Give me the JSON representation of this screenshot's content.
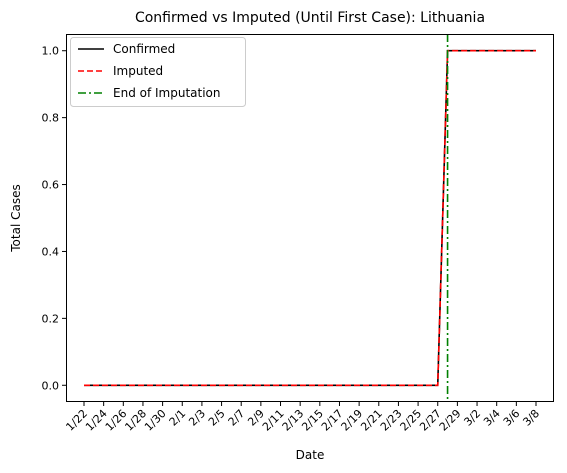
{
  "chart_data": {
    "type": "line",
    "title": "Confirmed vs Imputed (Until First Case): Lithuania",
    "xlabel": "Date",
    "ylabel": "Total Cases",
    "x": [
      "1/22",
      "1/23",
      "1/24",
      "1/25",
      "1/26",
      "1/27",
      "1/28",
      "1/29",
      "1/30",
      "1/31",
      "2/1",
      "2/2",
      "2/3",
      "2/4",
      "2/5",
      "2/6",
      "2/7",
      "2/8",
      "2/9",
      "2/10",
      "2/11",
      "2/12",
      "2/13",
      "2/14",
      "2/15",
      "2/16",
      "2/17",
      "2/18",
      "2/19",
      "2/20",
      "2/21",
      "2/22",
      "2/23",
      "2/24",
      "2/25",
      "2/26",
      "2/27",
      "2/28",
      "2/29",
      "3/1",
      "3/2",
      "3/3",
      "3/4",
      "3/5",
      "3/6",
      "3/7",
      "3/8"
    ],
    "xticklabels": [
      "1/22",
      "1/24",
      "1/26",
      "1/28",
      "1/30",
      "2/1",
      "2/3",
      "2/5",
      "2/7",
      "2/9",
      "2/11",
      "2/13",
      "2/15",
      "2/17",
      "2/19",
      "2/21",
      "2/23",
      "2/25",
      "2/27",
      "2/29",
      "3/2",
      "3/4",
      "3/6",
      "3/8"
    ],
    "ylim": [
      -0.05,
      1.05
    ],
    "yticks": [
      0.0,
      0.2,
      0.4,
      0.6,
      0.8,
      1.0
    ],
    "yticklabels": [
      "0.0",
      "0.2",
      "0.4",
      "0.6",
      "0.8",
      "1.0"
    ],
    "series": [
      {
        "name": "Confirmed",
        "color": "#000000",
        "style": "solid",
        "values": [
          0,
          0,
          0,
          0,
          0,
          0,
          0,
          0,
          0,
          0,
          0,
          0,
          0,
          0,
          0,
          0,
          0,
          0,
          0,
          0,
          0,
          0,
          0,
          0,
          0,
          0,
          0,
          0,
          0,
          0,
          0,
          0,
          0,
          0,
          0,
          0,
          0,
          1,
          1,
          1,
          1,
          1,
          1,
          1,
          1,
          1,
          1
        ]
      },
      {
        "name": "Imputed",
        "color": "#ff0000",
        "style": "dashed",
        "values": [
          0,
          0,
          0,
          0,
          0,
          0,
          0,
          0,
          0,
          0,
          0,
          0,
          0,
          0,
          0,
          0,
          0,
          0,
          0,
          0,
          0,
          0,
          0,
          0,
          0,
          0,
          0,
          0,
          0,
          0,
          0,
          0,
          0,
          0,
          0,
          0,
          0,
          1,
          1,
          1,
          1,
          1,
          1,
          1,
          1,
          1,
          1
        ]
      }
    ],
    "vline": {
      "name": "End of Imputation",
      "x": "2/28",
      "color": "#008000",
      "style": "dashdot"
    },
    "legend": {
      "placement": "top-left"
    },
    "grid": false
  }
}
